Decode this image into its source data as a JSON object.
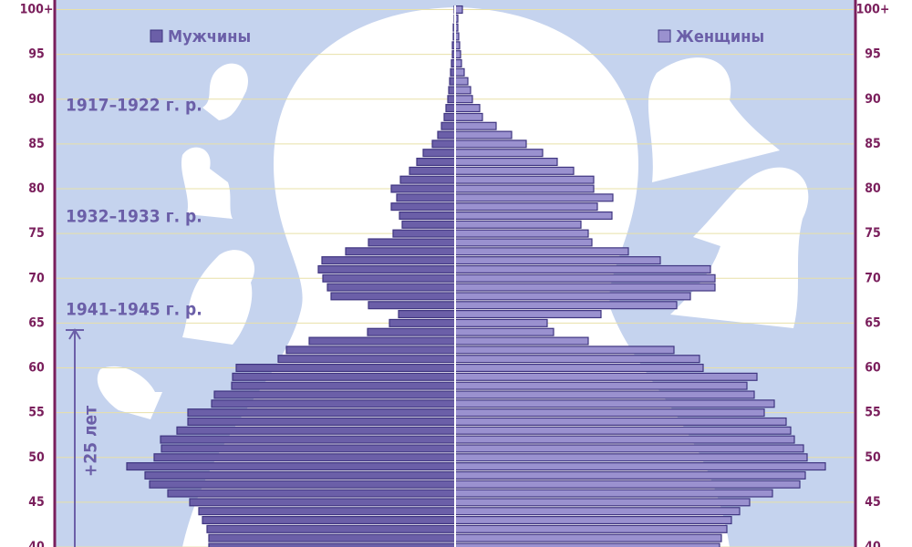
{
  "chart_data": {
    "type": "pyramid",
    "categories": [
      40,
      null,
      null,
      null,
      null,
      45,
      null,
      null,
      null,
      null,
      50,
      null,
      null,
      null,
      null,
      55,
      null,
      null,
      null,
      null,
      60,
      null,
      null,
      null,
      null,
      65,
      null,
      null,
      null,
      null,
      70,
      null,
      null,
      null,
      null,
      75,
      null,
      null,
      null,
      null,
      80,
      null,
      null,
      null,
      null,
      85,
      null,
      null,
      null,
      null,
      90,
      null,
      null,
      null,
      null,
      95,
      null,
      null,
      null,
      null,
      "100+"
    ],
    "series": [
      {
        "name": "Мужчины",
        "color": "#6b5fa8",
        "values": [
          270,
          270,
          272,
          277,
          281,
          291,
          315,
          335,
          340,
          360,
          330,
          322,
          323,
          305,
          293,
          293,
          267,
          264,
          245,
          244,
          240,
          194,
          185,
          160,
          96,
          72,
          62,
          95,
          136,
          140,
          145,
          150,
          146,
          120,
          95,
          68,
          58,
          61,
          70,
          64,
          70,
          60,
          50,
          42,
          35,
          25,
          19,
          15,
          12,
          10,
          8,
          7,
          6,
          5,
          4,
          3,
          3,
          2,
          2,
          1,
          1
        ]
      },
      {
        "name": "Женщины",
        "color": "#9a91cf",
        "values": [
          290,
          292,
          298,
          303,
          312,
          323,
          348,
          378,
          384,
          406,
          386,
          382,
          372,
          368,
          363,
          339,
          350,
          328,
          320,
          331,
          272,
          268,
          240,
          146,
          108,
          101,
          160,
          243,
          258,
          285,
          285,
          280,
          225,
          190,
          150,
          146,
          138,
          172,
          156,
          173,
          152,
          152,
          130,
          112,
          96,
          78,
          62,
          45,
          30,
          27,
          19,
          17,
          14,
          10,
          7,
          6,
          5,
          4,
          3,
          3,
          8
        ]
      }
    ],
    "xlim": [
      0,
      440
    ],
    "annotations": [
      "1917–1922 г. р.",
      "1932–1933 г. р.",
      "1941–1945 г. р.",
      "+25 лет"
    ]
  }
}
